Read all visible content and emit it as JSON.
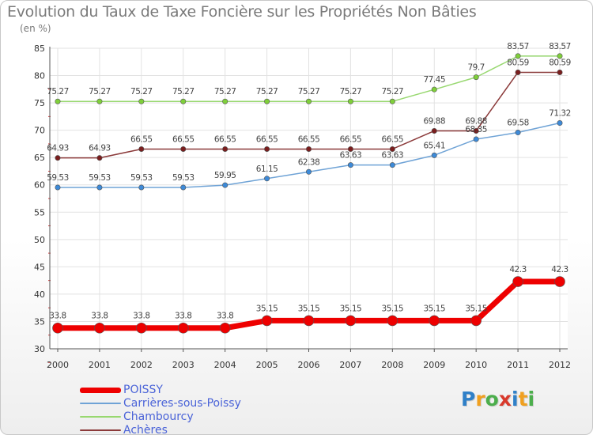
{
  "title": "Evolution du Taux de Taxe Foncière sur les Propriétés Non Bâties",
  "subtitle": "(en %)",
  "logo": {
    "text": "Proxiti",
    "colors": [
      "#2f80c8",
      "#f0a020",
      "#4cae4c",
      "#d8392b",
      "#2f80c8",
      "#f0a020",
      "#4cae4c"
    ]
  },
  "chart_data": {
    "type": "line",
    "title": "Evolution du Taux de Taxe Foncière sur les Propriétés Non Bâties",
    "ylabel": "(en %)",
    "xlabel": "",
    "x": [
      "2000",
      "2001",
      "2002",
      "2003",
      "2004",
      "2005",
      "2006",
      "2007",
      "2008",
      "2009",
      "2010",
      "2011",
      "2012"
    ],
    "ylim": [
      30,
      85
    ],
    "yticks": [
      30,
      35,
      40,
      45,
      50,
      55,
      60,
      65,
      70,
      75,
      80,
      85
    ],
    "grid": true,
    "legend_position": "bottom-left",
    "series": [
      {
        "name": "POISSY",
        "color": "#ee0000",
        "markerColor": "#ee0000",
        "width": 7,
        "markerRadius": 6.5,
        "values": [
          33.8,
          33.8,
          33.8,
          33.8,
          33.8,
          35.15,
          35.15,
          35.15,
          35.15,
          35.15,
          35.15,
          42.3,
          42.3
        ],
        "labels": [
          "33.8",
          "33.8",
          "33.8",
          "33.8",
          "33.8",
          "35.15",
          "35.15",
          "35.15",
          "35.15",
          "35.15",
          "35.15",
          "42.3",
          "42.3"
        ]
      },
      {
        "name": "Carrières-sous-Poissy",
        "color": "#6fa3d6",
        "markerColor": "#3d8ad8",
        "width": 1.5,
        "markerRadius": 3.2,
        "values": [
          59.53,
          59.53,
          59.53,
          59.53,
          59.95,
          61.15,
          62.38,
          63.63,
          63.63,
          65.41,
          68.35,
          69.58,
          71.32
        ],
        "labels": [
          "59.53",
          "59.53",
          "59.53",
          "59.53",
          "59.95",
          "61.15",
          "62.38",
          "63.63",
          "63.63",
          "65.41",
          "68.35",
          "69.58",
          "71.32"
        ]
      },
      {
        "name": "Chambourcy",
        "color": "#98d870",
        "markerColor": "#7fcf3a",
        "width": 1.5,
        "markerRadius": 3.2,
        "values": [
          75.27,
          75.27,
          75.27,
          75.27,
          75.27,
          75.27,
          75.27,
          75.27,
          75.27,
          77.45,
          79.7,
          83.57,
          83.57
        ],
        "labels": [
          "75.27",
          "75.27",
          "75.27",
          "75.27",
          "75.27",
          "75.27",
          "75.27",
          "75.27",
          "75.27",
          "77.45",
          "79.7",
          "83.57",
          "83.57"
        ]
      },
      {
        "name": "Achères",
        "color": "#8b3a3a",
        "markerColor": "#7a1e1e",
        "width": 1.5,
        "markerRadius": 3.2,
        "values": [
          64.93,
          64.93,
          66.55,
          66.55,
          66.55,
          66.55,
          66.55,
          66.55,
          66.55,
          69.88,
          69.88,
          80.59,
          80.59
        ],
        "labels": [
          "64.93",
          "64.93",
          "66.55",
          "66.55",
          "66.55",
          "66.55",
          "66.55",
          "66.55",
          "66.55",
          "69.88",
          "69.88",
          "80.59",
          "80.59"
        ]
      }
    ]
  }
}
